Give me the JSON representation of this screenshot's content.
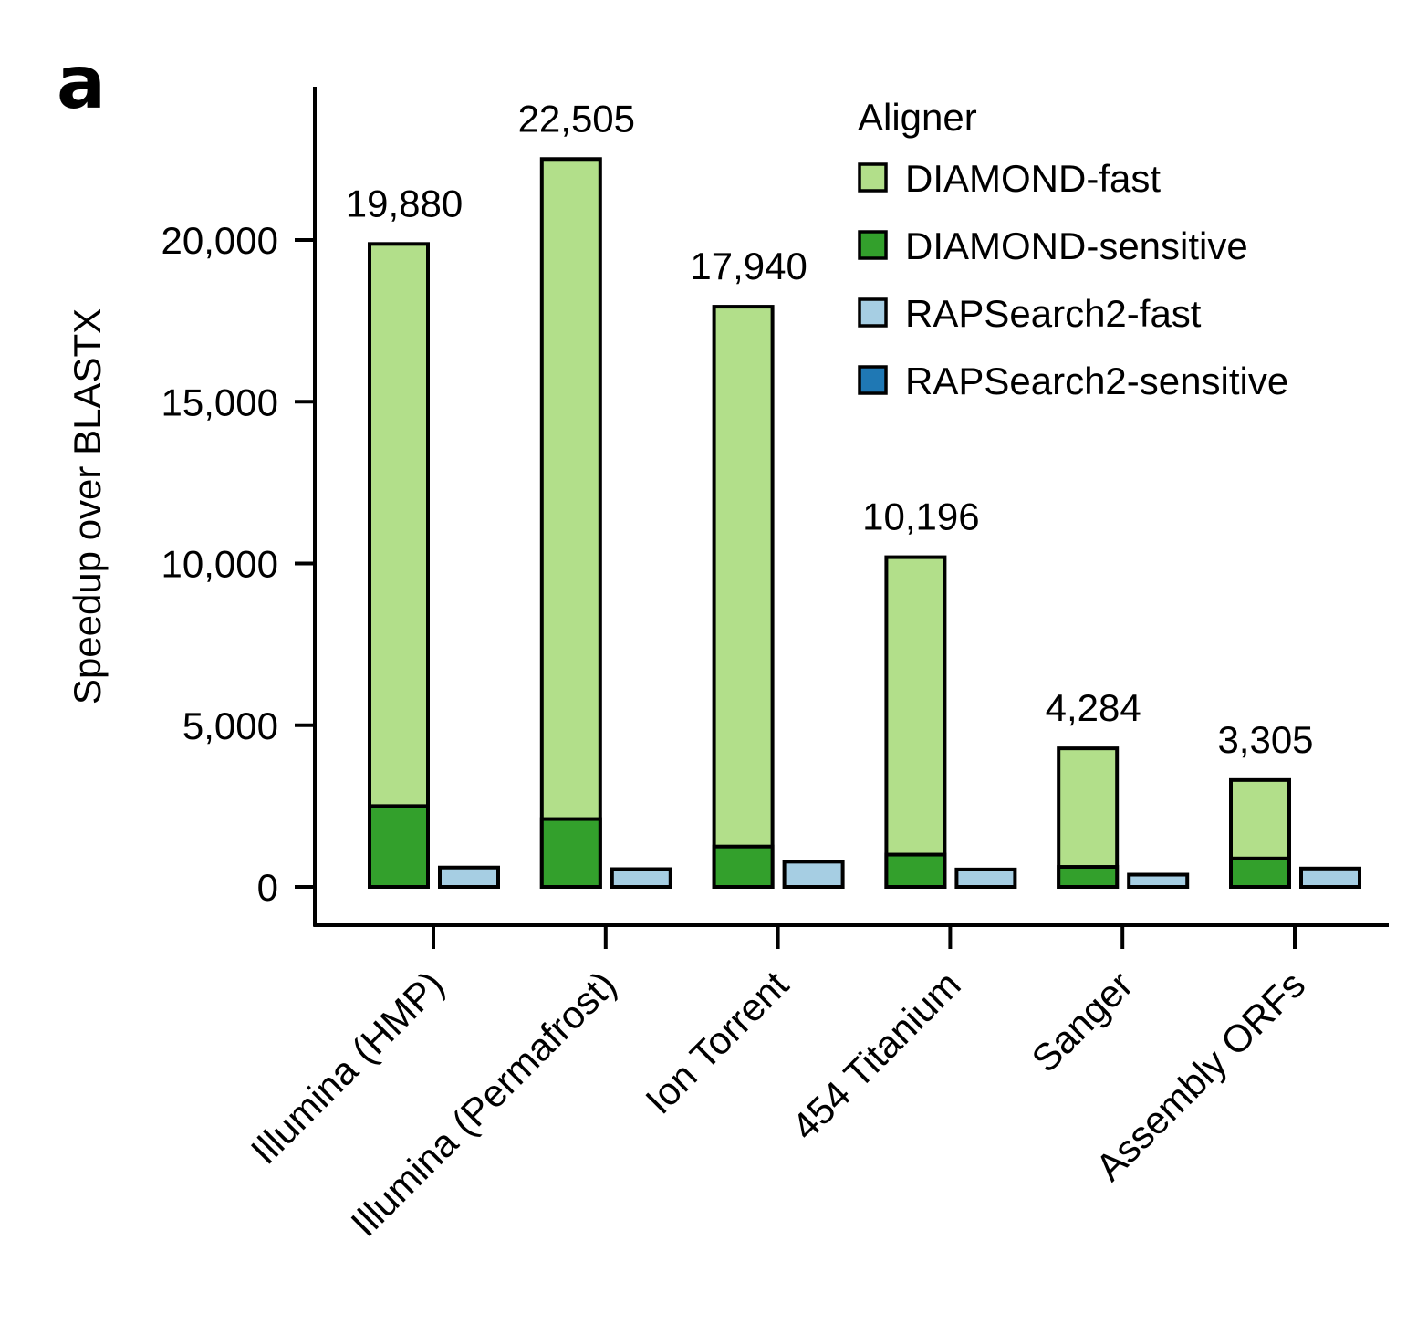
{
  "panel_label": "a",
  "chart_data": {
    "type": "bar",
    "title": "",
    "xlabel": "",
    "ylabel": "Speedup over BLASTX",
    "ylim": [
      -1100,
      24500
    ],
    "yticks": [
      0,
      5000,
      10000,
      15000,
      20000
    ],
    "ytick_labels": [
      "0",
      "5,000",
      "10,000",
      "15,000",
      "20,000"
    ],
    "categories": [
      "Illumina (HMP)",
      "Illumina (Permafrost)",
      "Ion Torrent",
      "454 Titanium",
      "Sanger",
      "Assembly ORFs"
    ],
    "stacked_groups": [
      [
        "DIAMOND-fast",
        "DIAMOND-sensitive"
      ],
      [
        "RAPSearch2-fast",
        "RAPSearch2-sensitive"
      ]
    ],
    "series": [
      {
        "name": "DIAMOND-fast",
        "color": "#b2df8a",
        "values": [
          19880,
          22505,
          17940,
          10196,
          4284,
          3305
        ]
      },
      {
        "name": "DIAMOND-sensitive",
        "color": "#33a02c",
        "values": [
          2500,
          2100,
          1250,
          1000,
          620,
          880
        ]
      },
      {
        "name": "RAPSearch2-fast",
        "color": "#a6cee3",
        "values": [
          600,
          550,
          780,
          540,
          380,
          570
        ]
      },
      {
        "name": "RAPSearch2-sensitive",
        "color": "#1f78b4",
        "values": [
          0,
          0,
          0,
          0,
          0,
          0
        ]
      }
    ],
    "data_labels": [
      "19,880",
      "22,505",
      "17,940",
      "10,196",
      "4,284",
      "3,305"
    ],
    "legend": {
      "title": "Aligner",
      "position": "top-right",
      "entries": [
        "DIAMOND-fast",
        "DIAMOND-sensitive",
        "RAPSearch2-fast",
        "RAPSearch2-sensitive"
      ]
    },
    "grid": false
  }
}
